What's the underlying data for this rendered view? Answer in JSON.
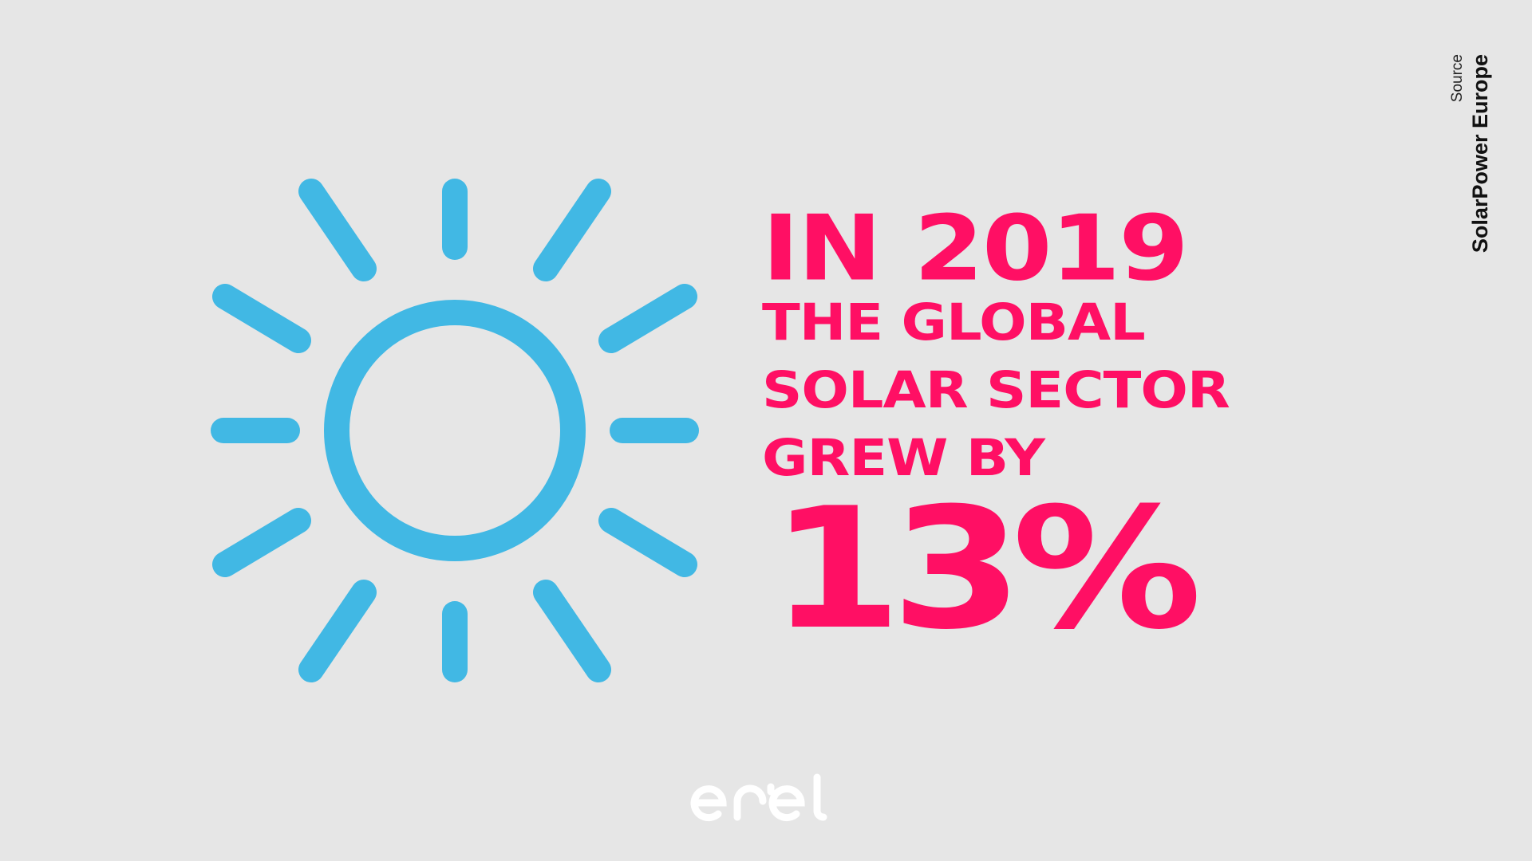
{
  "headline": {
    "line1": "IN 2019",
    "line2": "THE GLOBAL",
    "line3": "SOLAR SECTOR",
    "line4": "GREW BY",
    "line5": "13%"
  },
  "source": {
    "label": "Source",
    "name": "SolarPower Europe"
  },
  "logo": {
    "text": "enel"
  },
  "colors": {
    "background": "#e6e6e6",
    "headline": "#ff0f64",
    "sun": "#41b8e4",
    "logo": "#ffffff",
    "source_text": "#111111"
  },
  "icons": [
    "sun-icon",
    "enel-logo"
  ]
}
